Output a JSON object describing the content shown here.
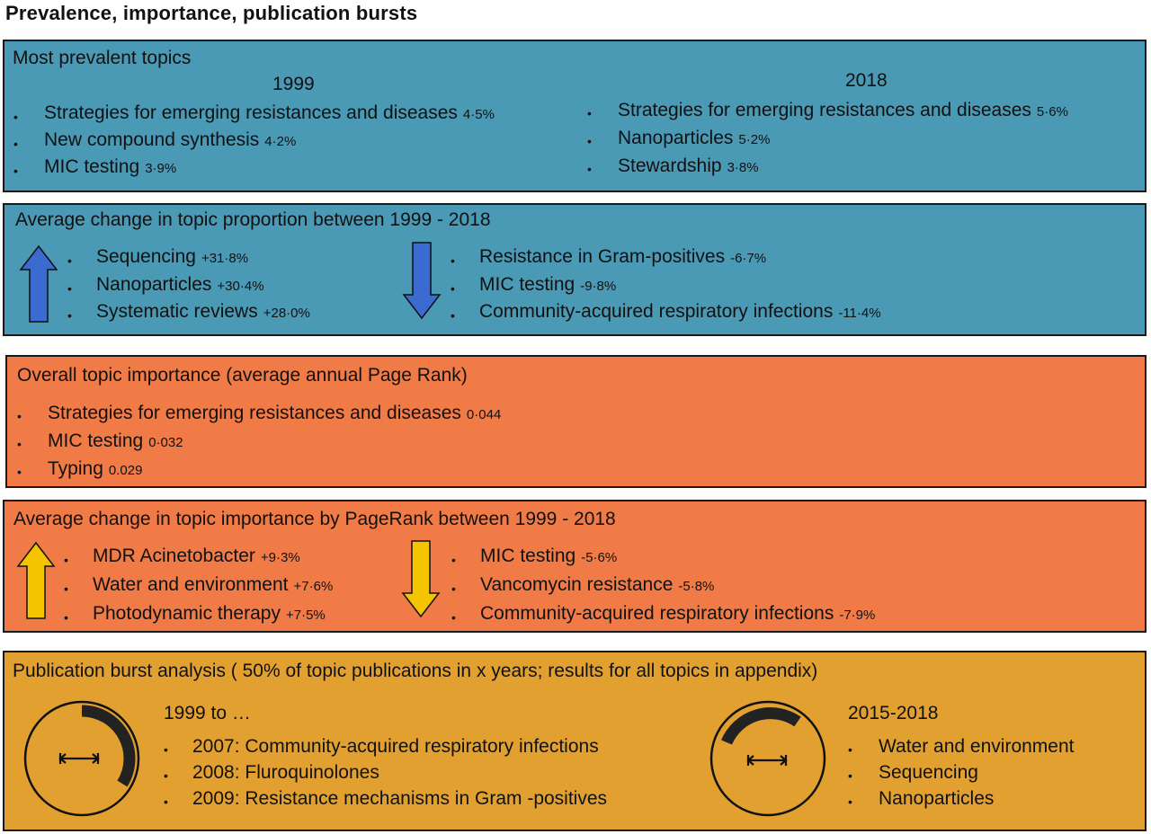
{
  "title": "Prevalence, importance, publication bursts",
  "colors": {
    "blue_panel": "#4a99b5",
    "orange_panel": "#f07b46",
    "gold_panel": "#e2a030",
    "blue_arrow": "#3b6ad0",
    "yellow_arrow": "#f5c400"
  },
  "prevalent": {
    "title": "Most prevalent topics",
    "year_a": "1999",
    "year_b": "2018",
    "items_a": [
      {
        "label": "Strategies for emerging resistances and diseases",
        "value": "4·5%"
      },
      {
        "label": "New compound synthesis",
        "value": "4·2%"
      },
      {
        "label": "MIC testing",
        "value": "3·9%"
      }
    ],
    "items_b": [
      {
        "label": "Strategies for emerging resistances and diseases",
        "value": "5·6%"
      },
      {
        "label": "Nanoparticles",
        "value": "5·2%"
      },
      {
        "label": "Stewardship",
        "value": "3·8%"
      }
    ]
  },
  "proportion_change": {
    "title": "Average change in topic proportion between 1999 - 2018",
    "up_icon": "arrow-up-icon",
    "down_icon": "arrow-down-icon",
    "up": [
      {
        "label": "Sequencing",
        "value": "+31·8%"
      },
      {
        "label": "Nanoparticles",
        "value": "+30·4%"
      },
      {
        "label": "Systematic reviews",
        "value": "+28·0%"
      }
    ],
    "down": [
      {
        "label": "Resistance in Gram-positives",
        "value": "-6·7%"
      },
      {
        "label": "MIC testing",
        "value": "-9·8%"
      },
      {
        "label": "Community-acquired respiratory infections",
        "value": "-11·4%"
      }
    ]
  },
  "importance": {
    "title": "Overall topic importance (average annual Page Rank)",
    "items": [
      {
        "label": "Strategies for emerging resistances and diseases",
        "value": "0·044"
      },
      {
        "label": "MIC testing",
        "value": "0·032"
      },
      {
        "label": "Typing",
        "value": "0.029"
      }
    ]
  },
  "pagerank_change": {
    "title": "Average change in topic importance by PageRank between 1999 - 2018",
    "up": [
      {
        "label": "MDR Acinetobacter",
        "value": "+9·3%"
      },
      {
        "label": "Water and environment",
        "value": "+7·6%"
      },
      {
        "label": "Photodynamic therapy",
        "value": "+7·5%"
      }
    ],
    "down": [
      {
        "label": "MIC testing",
        "value": "-5·6%"
      },
      {
        "label": "Vancomycin resistance",
        "value": "-5·8%"
      },
      {
        "label": "Community-acquired respiratory infections",
        "value": "-7·9%"
      }
    ]
  },
  "bursts": {
    "title": "Publication burst analysis ( 50% of topic publications  in x years; results for all topics in appendix)",
    "icon": "burst-clock-icon",
    "left_head": "1999 to …",
    "left_items": [
      "2007: Community-acquired respiratory infections",
      "2008: Fluroquinolones",
      "2009: Resistance mechanisms in Gram -positives"
    ],
    "right_head": "2015-2018",
    "right_items": [
      "Water and environment",
      "Sequencing",
      "Nanoparticles"
    ]
  },
  "bullet": "•"
}
